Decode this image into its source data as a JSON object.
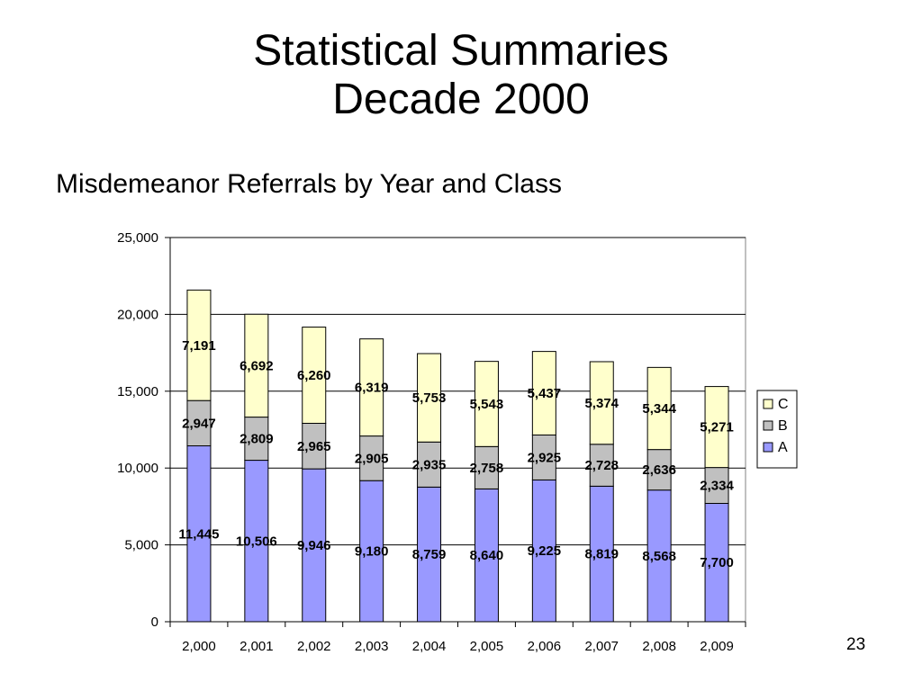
{
  "slide": {
    "title_line1": "Statistical Summaries",
    "title_line2": "Decade 2000",
    "subtitle": "Misdemeanor Referrals by Year and Class",
    "slide_number": "23"
  },
  "chart_data": {
    "type": "bar",
    "stacked": true,
    "title": "",
    "xlabel": "",
    "ylabel": "",
    "categories": [
      "2,000",
      "2,001",
      "2,002",
      "2,003",
      "2,004",
      "2,005",
      "2,006",
      "2,007",
      "2,008",
      "2,009"
    ],
    "series": [
      {
        "name": "A",
        "color": "#9999ff",
        "values": [
          11445,
          10506,
          9946,
          9180,
          8759,
          8640,
          9225,
          8819,
          8568,
          7700
        ],
        "labels": [
          "11,445",
          "10,506",
          "9,946",
          "9,180",
          "8,759",
          "8,640",
          "9,225",
          "8,819",
          "8,568",
          "7,700"
        ]
      },
      {
        "name": "B",
        "color": "#c0c0c0",
        "values": [
          2947,
          2809,
          2965,
          2905,
          2935,
          2758,
          2925,
          2728,
          2636,
          2334
        ],
        "labels": [
          "2,947",
          "2,809",
          "2,965",
          "2,905",
          "2,935",
          "2,758",
          "2,925",
          "2,728",
          "2,636",
          "2,334"
        ]
      },
      {
        "name": "C",
        "color": "#ffffcc",
        "values": [
          7191,
          6692,
          6260,
          6319,
          5753,
          5543,
          5437,
          5374,
          5344,
          5271
        ],
        "labels": [
          "7,191",
          "6,692",
          "6,260",
          "6,319",
          "5,753",
          "5,543",
          "5,437",
          "5,374",
          "5,344",
          "5,271"
        ]
      }
    ],
    "ylim": [
      0,
      25000
    ],
    "yticks": [
      0,
      5000,
      10000,
      15000,
      20000,
      25000
    ],
    "ytick_labels": [
      "0",
      "5,000",
      "10,000",
      "15,000",
      "20,000",
      "25,000"
    ],
    "grid": true,
    "legend": "right",
    "legend_order": [
      "C",
      "B",
      "A"
    ]
  }
}
